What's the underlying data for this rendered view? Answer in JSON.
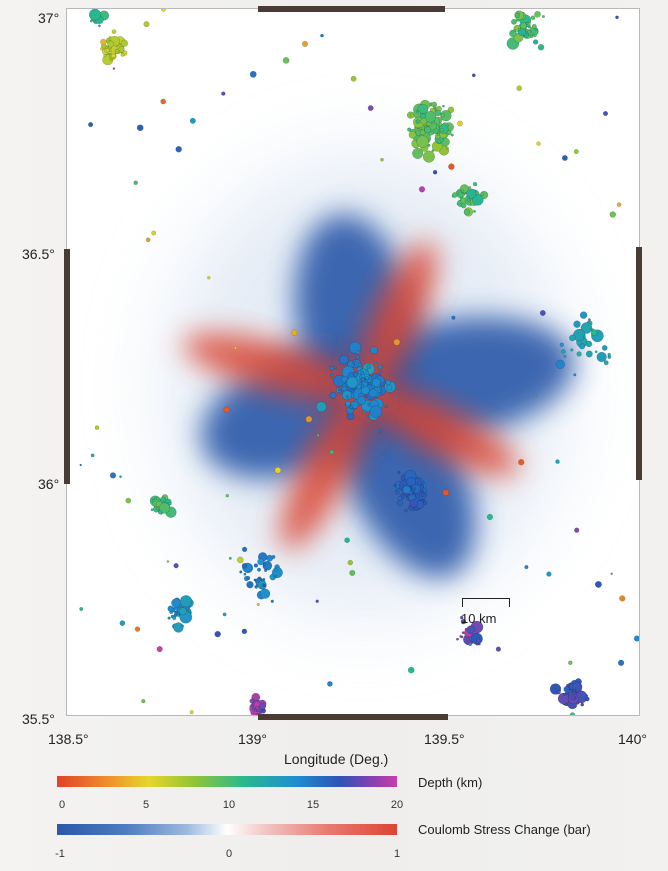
{
  "map": {
    "x_axis_title": "Longitude (Deg.)",
    "x_ticks": [
      "138.5°",
      "139°",
      "139.5°",
      "140°"
    ],
    "x_tick_values": [
      138.5,
      139.0,
      139.5,
      140.0
    ],
    "y_ticks": [
      "37°",
      "36.5°",
      "36°",
      "35.5°"
    ],
    "y_tick_values": [
      37.0,
      36.5,
      36.0,
      35.5
    ],
    "extent": {
      "lon_min": 138.5,
      "lon_max": 140.0,
      "lat_min": 35.5,
      "lat_max": 37.0
    },
    "scale_bar_label": "10 km"
  },
  "legend": {
    "depth": {
      "title": "Depth (km)",
      "ticks": [
        "0",
        "5",
        "10",
        "15",
        "20"
      ],
      "tick_values": [
        0,
        5,
        10,
        15,
        20
      ],
      "colors": [
        "#e0412a",
        "#e6d62c",
        "#93c534",
        "#28b98e",
        "#1f8fcf",
        "#2c55b8",
        "#c83fa8"
      ]
    },
    "coulomb": {
      "title": "Coulomb Stress Change (bar)",
      "ticks": [
        "-1",
        "0",
        "1"
      ],
      "tick_values": [
        -1,
        0,
        1
      ],
      "negative_color": "#2b58a8",
      "positive_color": "#dc4433"
    }
  },
  "chart_data": {
    "type": "scatter",
    "xlabel": "Longitude (Deg.)",
    "xlim": [
      138.5,
      140.0
    ],
    "ylim": [
      35.5,
      37.0
    ],
    "color_variable": "Depth (km)",
    "background_field": "Coulomb Stress Change (bar)",
    "stress_lobes": [
      {
        "sign": "negative",
        "center": [
          139.25,
          36.35
        ]
      },
      {
        "sign": "negative",
        "center": [
          139.38,
          36.02
        ]
      },
      {
        "sign": "negative",
        "center": [
          139.1,
          36.14
        ]
      },
      {
        "sign": "negative",
        "center": [
          139.52,
          36.22
        ]
      },
      {
        "sign": "positive",
        "center": [
          139.05,
          36.24
        ]
      },
      {
        "sign": "positive",
        "center": [
          139.47,
          36.11
        ]
      },
      {
        "sign": "positive",
        "center": [
          139.18,
          36.03
        ]
      },
      {
        "sign": "positive",
        "center": [
          139.36,
          36.34
        ]
      }
    ],
    "event_clusters": [
      {
        "lon": 138.62,
        "lat": 36.92,
        "depth": 5,
        "spread": 0.06,
        "count": 45
      },
      {
        "lon": 138.58,
        "lat": 36.98,
        "depth": 10,
        "spread": 0.04,
        "count": 15
      },
      {
        "lon": 139.45,
        "lat": 36.75,
        "depth": 8,
        "spread": 0.12,
        "count": 120
      },
      {
        "lon": 139.7,
        "lat": 36.96,
        "depth": 9,
        "spread": 0.08,
        "count": 45
      },
      {
        "lon": 139.55,
        "lat": 36.6,
        "depth": 9,
        "spread": 0.08,
        "count": 35
      },
      {
        "lon": 139.27,
        "lat": 36.2,
        "depth": 14,
        "spread": 0.14,
        "count": 150
      },
      {
        "lon": 139.4,
        "lat": 35.98,
        "depth": 16,
        "spread": 0.09,
        "count": 70
      },
      {
        "lon": 138.75,
        "lat": 35.95,
        "depth": 9,
        "spread": 0.05,
        "count": 30
      },
      {
        "lon": 138.8,
        "lat": 35.72,
        "depth": 13,
        "spread": 0.07,
        "count": 40
      },
      {
        "lon": 139.0,
        "lat": 35.52,
        "depth": 19,
        "spread": 0.04,
        "count": 30
      },
      {
        "lon": 139.82,
        "lat": 35.55,
        "depth": 17,
        "spread": 0.07,
        "count": 50
      },
      {
        "lon": 139.55,
        "lat": 35.68,
        "depth": 18,
        "spread": 0.06,
        "count": 25
      },
      {
        "lon": 139.0,
        "lat": 35.8,
        "depth": 14,
        "spread": 0.12,
        "count": 40
      },
      {
        "lon": 139.85,
        "lat": 36.3,
        "depth": 12,
        "spread": 0.15,
        "count": 30
      }
    ]
  }
}
